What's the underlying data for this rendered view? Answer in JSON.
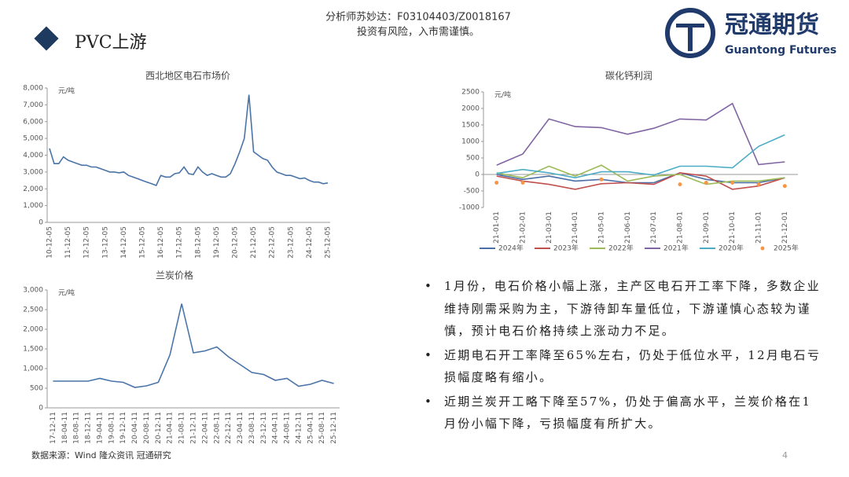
{
  "header": {
    "title": "PVC上游",
    "analyst": "分析师苏妙达：F03104403/Z0018167",
    "disclaimer": "投资有风险，入市需谨慎。"
  },
  "logo": {
    "cn": "冠通期货",
    "en": "Guantong Futures"
  },
  "chart_data": [
    {
      "type": "line",
      "title": "西北地区电石市场价",
      "unit": "元/吨",
      "color": "#4a74a8",
      "categories": [
        "10-12-05",
        null,
        null,
        null,
        "11-12-05",
        null,
        null,
        null,
        "12-12-05",
        null,
        null,
        null,
        "13-12-05",
        null,
        null,
        null,
        "14-12-05",
        null,
        null,
        null,
        "15-12-05",
        null,
        null,
        null,
        "16-12-05",
        null,
        null,
        null,
        "17-12-05",
        null,
        null,
        null,
        "18-12-05",
        null,
        null,
        null,
        "19-12-05",
        null,
        null,
        null,
        "20-12-05",
        null,
        null,
        null,
        "21-12-05",
        null,
        null,
        null,
        "22-12-05",
        null,
        null,
        null,
        "23-12-05",
        null,
        null,
        null,
        "24-12-05",
        null,
        null,
        null,
        "25-12-05"
      ],
      "values": [
        4400,
        3500,
        3500,
        3900,
        3700,
        3600,
        3500,
        3400,
        3400,
        3300,
        3300,
        3200,
        3100,
        3000,
        3000,
        2950,
        3000,
        2800,
        2700,
        2600,
        2500,
        2400,
        2300,
        2200,
        2800,
        2700,
        2700,
        2900,
        2950,
        3300,
        2900,
        2850,
        3300,
        3000,
        2800,
        2900,
        2800,
        2700,
        2700,
        2900,
        3500,
        4200,
        5000,
        7600,
        4200,
        4000,
        3800,
        3700,
        3300,
        3000,
        2900,
        2800,
        2800,
        2700,
        2600,
        2650,
        2500,
        2400,
        2400,
        2300,
        2350
      ],
      "ylim": [
        0,
        8000
      ],
      "yticks": [
        0,
        {
          "value": 1000,
          "label": "1,000"
        },
        {
          "value": 2000,
          "label": "2,000"
        },
        {
          "value": 3000,
          "label": "3,000"
        },
        {
          "value": 4000,
          "label": "4,000"
        },
        {
          "value": 5000,
          "label": "5,000"
        },
        {
          "value": 6000,
          "label": "6,000"
        },
        {
          "value": 7000,
          "label": "7,000"
        },
        {
          "value": 8000,
          "label": "8,000"
        }
      ]
    },
    {
      "type": "line",
      "title": "碳化钙利润",
      "unit": "元/吨",
      "legend": "bottom",
      "categories": [
        "21-01-01",
        "21-02-01",
        "21-03-01",
        "21-04-01",
        "21-05-01",
        "21-06-01",
        "21-07-01",
        "21-08-01",
        "21-09-01",
        "21-10-01",
        "21-11-01",
        "21-12-01"
      ],
      "series": [
        {
          "name": "2024年",
          "color": "#4a6fa5",
          "values": [
            0,
            -150,
            -50,
            -200,
            -150,
            -250,
            -250,
            50,
            -150,
            -250,
            -250,
            -100
          ]
        },
        {
          "name": "2023年",
          "color": "#c0504d",
          "values": [
            -50,
            -200,
            -300,
            -450,
            -280,
            -250,
            -300,
            50,
            -50,
            -450,
            -350,
            -100
          ]
        },
        {
          "name": "2022年",
          "color": "#9bbb59",
          "values": [
            50,
            -100,
            250,
            -50,
            280,
            -200,
            -50,
            0,
            -300,
            -200,
            -200,
            -100
          ]
        },
        {
          "name": "2021年",
          "color": "#8064a2",
          "values": [
            280,
            620,
            1680,
            1450,
            1420,
            1220,
            1400,
            1680,
            1650,
            2150,
            300,
            380
          ]
        },
        {
          "name": "2020年",
          "color": "#4bacc6",
          "values": [
            30,
            150,
            50,
            -100,
            80,
            80,
            -20,
            250,
            250,
            200,
            850,
            1200
          ]
        },
        {
          "name": "2025年",
          "color": "#f79646",
          "type": "scatter",
          "values": [
            -250,
            -250,
            null,
            null,
            -150,
            null,
            null,
            -300,
            -250,
            -250,
            -300,
            -350
          ]
        }
      ],
      "ylim": [
        -1000,
        2500
      ],
      "yticks": [
        -1000,
        -500,
        0,
        500,
        1000,
        1500,
        2000,
        2500
      ]
    },
    {
      "type": "line",
      "title": "兰炭价格",
      "unit": "元/吨",
      "color": "#4a74a8",
      "categories": [
        "17-12-11",
        "18-04-11",
        "18-08-11",
        "18-12-11",
        "19-04-11",
        "19-08-11",
        "19-12-11",
        "20-04-11",
        "20-08-11",
        "20-12-11",
        "21-04-11",
        "21-08-11",
        "21-12-11",
        "22-04-11",
        "22-08-11",
        "22-12-11",
        "23-04-11",
        "23-08-11",
        "23-12-11",
        "24-04-11",
        "24-08-11",
        "24-12-11",
        "25-04-11",
        "25-08-11",
        "25-12-11"
      ],
      "values": [
        680,
        680,
        680,
        680,
        750,
        680,
        650,
        520,
        560,
        650,
        1350,
        2650,
        1400,
        1450,
        1550,
        1300,
        1100,
        900,
        850,
        700,
        750,
        550,
        600,
        700,
        620
      ],
      "ylim": [
        0,
        3000
      ],
      "yticks": [
        0,
        500,
        {
          "value": 1000,
          "label": "1,000"
        },
        {
          "value": 1500,
          "label": "1,500"
        },
        {
          "value": 2000,
          "label": "2,000"
        },
        {
          "value": 2500,
          "label": "2,500"
        },
        {
          "value": 3000,
          "label": "3,000"
        }
      ]
    }
  ],
  "bullets": [
    "1月份，电石价格小幅上涨，主产区电石开工率下降，多数企业维持刚需采购为主，下游待卸车量低位，下游谨慎心态较为谨慎，预计电石价格持续上涨动力不足。",
    "近期电石开工率降至65%左右，仍处于低位水平，12月电石亏损幅度略有缩小。",
    "近期兰炭开工略下降至57%，仍处于偏高水平，兰炭价格在1月份小幅下降，亏损幅度有所扩大。"
  ],
  "source": "数据来源：Wind 隆众资讯 冠通研究",
  "page_number": 4
}
